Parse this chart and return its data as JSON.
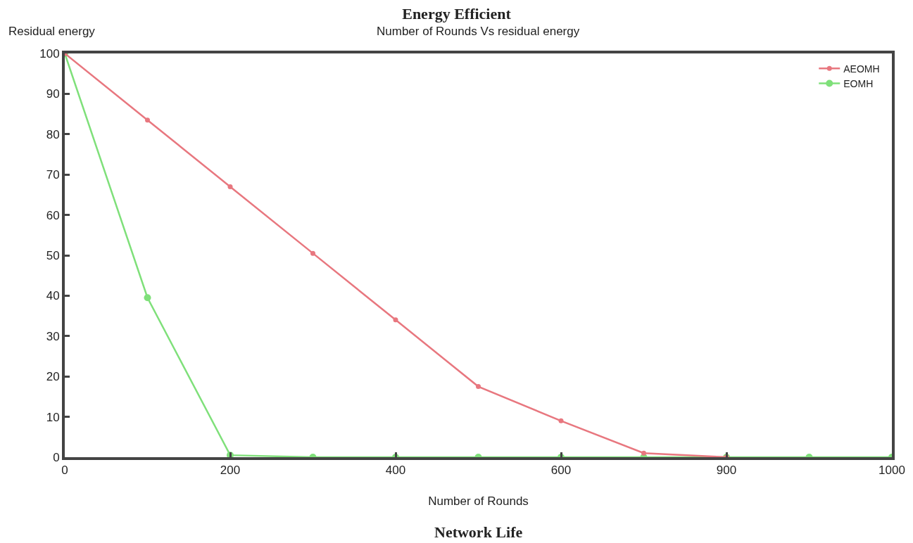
{
  "chart_data": {
    "type": "line",
    "title": "Energy Efficient",
    "subtitle": "Number of Rounds Vs residual energy",
    "xlabel": "Number of Rounds",
    "ylabel": "Residual energy",
    "annotations": [
      "Network Life"
    ],
    "categories": [
      "0",
      null,
      "200",
      null,
      "400",
      null,
      "600",
      null,
      "900",
      null,
      "1000"
    ],
    "series": [
      {
        "name": "AEOMH",
        "color": "#e8777f",
        "values": [
          100,
          83.5,
          67,
          50.5,
          34,
          17.5,
          9,
          1,
          0,
          null,
          null
        ]
      },
      {
        "name": "EOMH",
        "color": "#7fe07a",
        "values": [
          100,
          39.5,
          0.5,
          0,
          0,
          0,
          0,
          0,
          0,
          0,
          0
        ]
      }
    ],
    "ylim": [
      0,
      100
    ],
    "yticks": [
      0,
      10,
      20,
      30,
      40,
      50,
      60,
      70,
      80,
      90,
      100
    ],
    "grid": false,
    "legend": "top right",
    "marker": "circle",
    "line_style": "solid"
  }
}
